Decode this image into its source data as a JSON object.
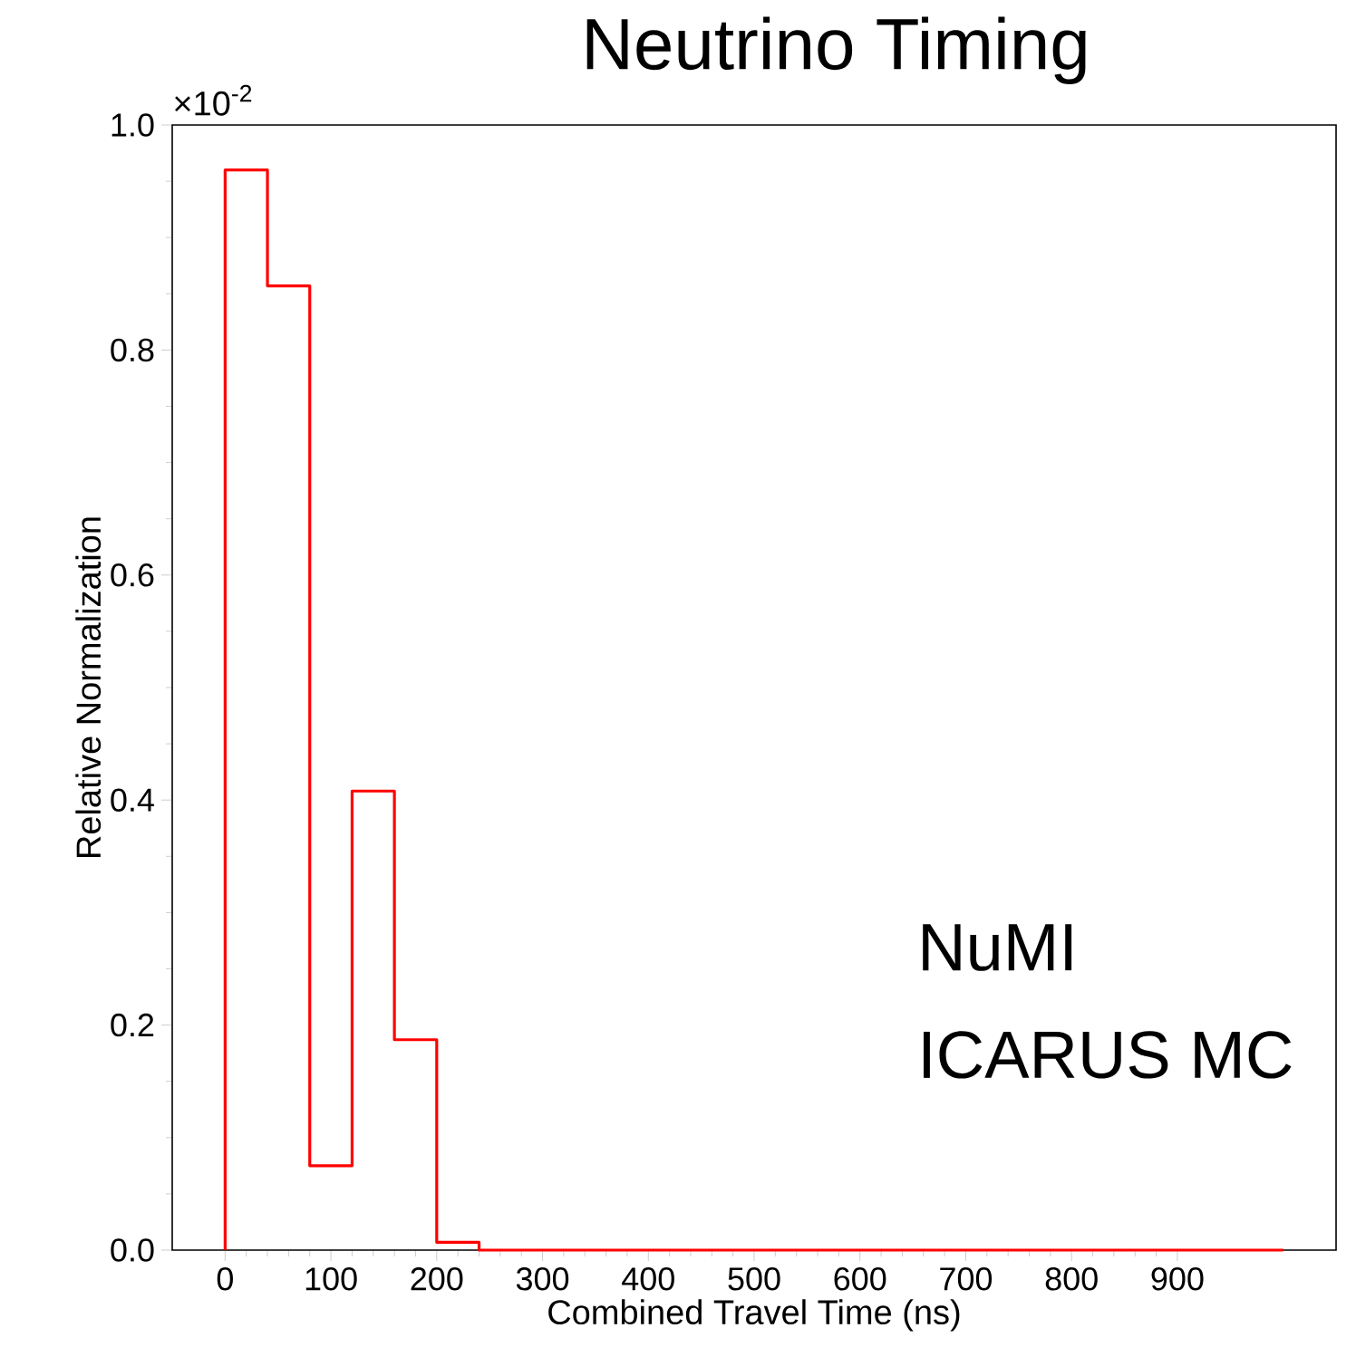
{
  "chart_data": {
    "type": "histogram",
    "title": "Neutrino Timing",
    "xlabel": "Combined Travel Time (ns)",
    "ylabel": "Relative Normalization",
    "annotations": [
      "×10$^{-2}$",
      "NuMI",
      "ICARUS MC"
    ],
    "bins": [
      0,
      40,
      80,
      120,
      160,
      200,
      240,
      280,
      320,
      360,
      400,
      440,
      480,
      520,
      560,
      600,
      640,
      680,
      720,
      760,
      800,
      840,
      880,
      920,
      960,
      1000
    ],
    "values": [
      0.96,
      0.857,
      0.075,
      0.408,
      0.187,
      0.007,
      0,
      0,
      0,
      0,
      0,
      0,
      0,
      0,
      0,
      0,
      0,
      0,
      0,
      0,
      0,
      0,
      0,
      0,
      0
    ],
    "color": "#ff0000",
    "xlim": [
      -50,
      1050
    ],
    "ylim": [
      0,
      1.0
    ],
    "xticks": [
      0,
      100,
      200,
      300,
      400,
      500,
      600,
      700,
      800,
      900
    ],
    "yticks": [
      {
        "value": 0,
        "label": "0.0"
      },
      {
        "value": 0.2,
        "label": "0.2"
      },
      {
        "value": 0.4,
        "label": "0.4"
      },
      {
        "value": 0.6,
        "label": "0.6"
      },
      {
        "value": 0.8,
        "label": "0.8"
      },
      {
        "value": 1.0,
        "label": "1.0"
      }
    ],
    "grid": false
  }
}
